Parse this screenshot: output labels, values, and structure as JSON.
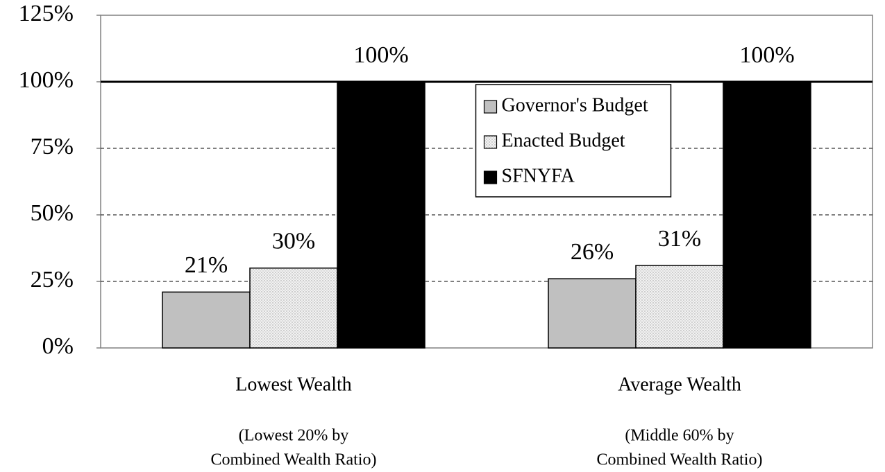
{
  "chart_data": {
    "type": "bar",
    "categories": [
      "Lowest Wealth",
      "Average Wealth"
    ],
    "category_notes": [
      [
        "(Lowest 20% by",
        "Combined Wealth Ratio)"
      ],
      [
        "(Middle 60% by",
        "Combined Wealth Ratio)"
      ]
    ],
    "series": [
      {
        "name": "Governor's Budget",
        "color": "#c0c0c0",
        "values": [
          21,
          26
        ],
        "value_labels": [
          "21%",
          "26%"
        ]
      },
      {
        "name": "Enacted Budget",
        "color": "#eeeeee",
        "pattern": "dots",
        "values": [
          30,
          31
        ],
        "value_labels": [
          "30%",
          "31%"
        ]
      },
      {
        "name": "SFNYFA",
        "color": "#000000",
        "values": [
          100,
          100
        ],
        "value_labels": [
          "100%",
          "100%"
        ]
      }
    ],
    "ylim": [
      0,
      125
    ],
    "yticks": [
      {
        "value": 0,
        "label": "0%"
      },
      {
        "value": 25,
        "label": "25%"
      },
      {
        "value": 50,
        "label": "50%"
      },
      {
        "value": 75,
        "label": "75%"
      },
      {
        "value": 100,
        "label": "100%"
      },
      {
        "value": 125,
        "label": "125%"
      }
    ],
    "grid": true,
    "reference_line": 100,
    "legend": "center"
  }
}
